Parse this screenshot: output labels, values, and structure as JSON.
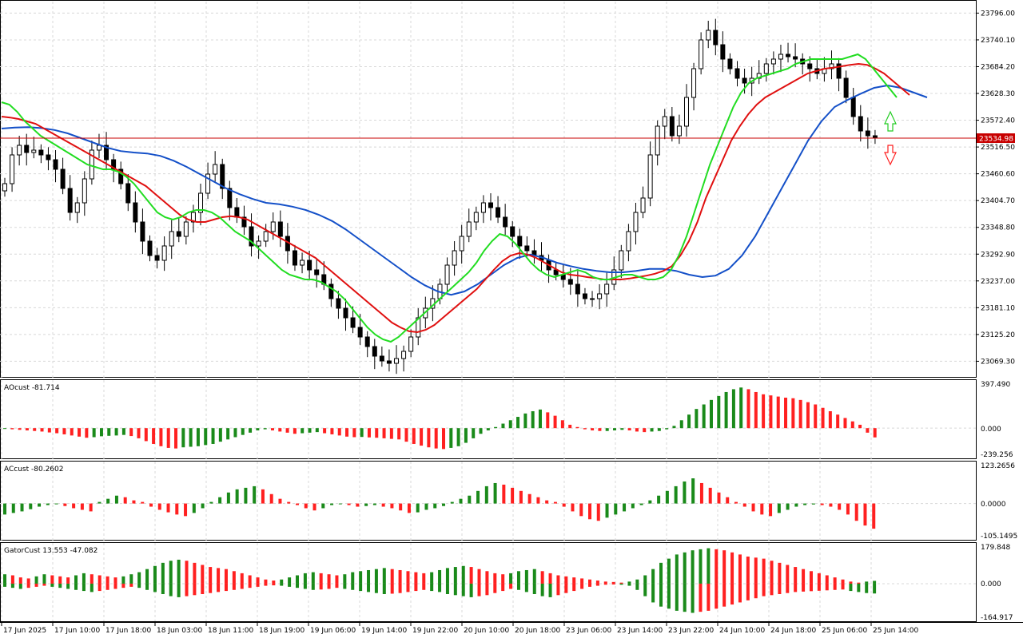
{
  "colors": {
    "background": "#ffffff",
    "grid": "#d8d8d8",
    "candle_up": "#ffffff",
    "candle_down": "#000000",
    "jaw": "#1450c8",
    "teeth": "#e01010",
    "lips": "#22dd22",
    "histogram_up": "#1a8a1a",
    "histogram_down": "#ff2020",
    "price_line": "#c80000",
    "current_price_bg": "#c80000",
    "current_price_text": "#ffffff",
    "fractal": "#a0a0a0",
    "arrow_up": "#22cc22",
    "arrow_down": "#ff2020"
  },
  "price_axis": {
    "labels": [
      "23796.00",
      "23740.10",
      "23684.20",
      "23628.30",
      "23572.40",
      "23516.50",
      "23460.60",
      "23404.70",
      "23348.80",
      "23292.90",
      "23237.00",
      "23181.10",
      "23125.20",
      "23069.30"
    ],
    "current_price": "23534.98"
  },
  "time_axis": {
    "labels": [
      "17 Jun 2025",
      "17 Jun 10:00",
      "17 Jun 18:00",
      "18 Jun 03:00",
      "18 Jun 11:00",
      "18 Jun 19:00",
      "19 Jun 06:00",
      "19 Jun 14:00",
      "19 Jun 22:00",
      "20 Jun 10:00",
      "20 Jun 18:00",
      "23 Jun 06:00",
      "23 Jun 14:00",
      "23 Jun 22:00",
      "24 Jun 10:00",
      "24 Jun 18:00",
      "25 Jun 06:00",
      "25 Jun 14:00"
    ]
  },
  "indicators": {
    "ao": {
      "label": "AOcust -81.714",
      "axis": [
        "397.490",
        "0.000",
        "-239.256"
      ]
    },
    "ac": {
      "label": "ACcust -80.2602",
      "axis": [
        "123.2656",
        "0.0000",
        "-105.1495"
      ]
    },
    "gator": {
      "label": "GatorCust 13.553 -47.082",
      "axis": [
        "179.848",
        "0.000",
        "-164.917"
      ]
    }
  },
  "chart_data": [
    {
      "type": "candlestick",
      "title": "",
      "ylim": [
        23040,
        23820
      ],
      "current_price": 23534.98,
      "close": [
        23440,
        23500,
        23520,
        23505,
        23510,
        23500,
        23490,
        23470,
        23430,
        23380,
        23400,
        23450,
        23510,
        23520,
        23490,
        23470,
        23440,
        23400,
        23360,
        23320,
        23290,
        23280,
        23310,
        23340,
        23330,
        23360,
        23380,
        23420,
        23460,
        23480,
        23430,
        23390,
        23370,
        23350,
        23310,
        23320,
        23340,
        23360,
        23330,
        23300,
        23270,
        23280,
        23260,
        23250,
        23230,
        23200,
        23180,
        23160,
        23140,
        23120,
        23100,
        23080,
        23070,
        23065,
        23075,
        23090,
        23120,
        23160,
        23180,
        23200,
        23230,
        23270,
        23300,
        23330,
        23360,
        23380,
        23400,
        23390,
        23370,
        23350,
        23330,
        23310,
        23300,
        23290,
        23280,
        23260,
        23250,
        23240,
        23230,
        23210,
        23200,
        23200,
        23210,
        23230,
        23260,
        23300,
        23340,
        23380,
        23410,
        23500,
        23560,
        23580,
        23540,
        23560,
        23620,
        23680,
        23740,
        23760,
        23730,
        23700,
        23680,
        23660,
        23650,
        23660,
        23670,
        23690,
        23700,
        23710,
        23705,
        23700,
        23690,
        23680,
        23670,
        23680,
        23690,
        23660,
        23620,
        23580,
        23550,
        23540,
        23535
      ],
      "lips": [
        23610,
        23605,
        23590,
        23570,
        23555,
        23540,
        23530,
        23520,
        23510,
        23500,
        23490,
        23480,
        23475,
        23470,
        23470,
        23465,
        23455,
        23440,
        23420,
        23400,
        23380,
        23370,
        23365,
        23370,
        23380,
        23385,
        23385,
        23380,
        23370,
        23355,
        23340,
        23330,
        23320,
        23305,
        23290,
        23275,
        23260,
        23250,
        23245,
        23240,
        23240,
        23235,
        23225,
        23215,
        23200,
        23180,
        23160,
        23140,
        23125,
        23115,
        23110,
        23120,
        23135,
        23150,
        23165,
        23180,
        23195,
        23210,
        23225,
        23240,
        23255,
        23275,
        23300,
        23320,
        23335,
        23330,
        23315,
        23295,
        23275,
        23260,
        23250,
        23245,
        23250,
        23255,
        23260,
        23255,
        23245,
        23240,
        23240,
        23245,
        23250,
        23250,
        23245,
        23240,
        23240,
        23245,
        23260,
        23290,
        23330,
        23380,
        23430,
        23480,
        23520,
        23560,
        23600,
        23630,
        23650,
        23660,
        23665,
        23670,
        23675,
        23680,
        23690,
        23695,
        23700,
        23700,
        23700,
        23700,
        23700,
        23705,
        23710,
        23700,
        23680,
        23660,
        23640,
        23620
      ],
      "teeth": [
        23580,
        23578,
        23575,
        23570,
        23565,
        23555,
        23545,
        23535,
        23525,
        23515,
        23505,
        23495,
        23485,
        23475,
        23465,
        23455,
        23445,
        23435,
        23420,
        23405,
        23390,
        23375,
        23365,
        23360,
        23360,
        23365,
        23370,
        23372,
        23370,
        23365,
        23355,
        23345,
        23335,
        23325,
        23315,
        23305,
        23295,
        23285,
        23270,
        23255,
        23240,
        23225,
        23210,
        23195,
        23180,
        23165,
        23150,
        23140,
        23132,
        23130,
        23135,
        23145,
        23160,
        23175,
        23190,
        23205,
        23220,
        23240,
        23260,
        23278,
        23290,
        23295,
        23292,
        23285,
        23275,
        23265,
        23255,
        23250,
        23248,
        23245,
        23243,
        23240,
        23240,
        23240,
        23242,
        23245,
        23248,
        23252,
        23258,
        23268,
        23290,
        23320,
        23360,
        23410,
        23450,
        23490,
        23530,
        23560,
        23585,
        23605,
        23620,
        23630,
        23640,
        23650,
        23660,
        23670,
        23675,
        23680,
        23682,
        23685,
        23688,
        23690,
        23688,
        23680,
        23670,
        23655,
        23640,
        23625
      ],
      "jaw": [
        23555,
        23557,
        23558,
        23556,
        23552,
        23545,
        23535,
        23525,
        23515,
        23508,
        23505,
        23503,
        23498,
        23488,
        23475,
        23460,
        23445,
        23430,
        23418,
        23408,
        23400,
        23397,
        23392,
        23385,
        23375,
        23362,
        23345,
        23325,
        23305,
        23285,
        23265,
        23245,
        23228,
        23215,
        23208,
        23215,
        23230,
        23250,
        23270,
        23285,
        23292,
        23285,
        23275,
        23268,
        23262,
        23258,
        23255,
        23255,
        23258,
        23262,
        23262,
        23258,
        23250,
        23245,
        23248,
        23262,
        23290,
        23330,
        23380,
        23430,
        23480,
        23530,
        23570,
        23600,
        23615,
        23628,
        23640,
        23645,
        23640,
        23630,
        23620
      ]
    },
    {
      "type": "bar",
      "title": "AOcust -81.714",
      "ylim": [
        -239.256,
        397.49
      ],
      "values": [
        -5,
        -10,
        -15,
        -20,
        -25,
        -30,
        -38,
        -45,
        -55,
        -65,
        -75,
        -85,
        -80,
        -72,
        -68,
        -65,
        -60,
        -70,
        -90,
        -115,
        -140,
        -160,
        -175,
        -180,
        -170,
        -165,
        -160,
        -150,
        -140,
        -120,
        -100,
        -80,
        -60,
        -40,
        -20,
        -10,
        -20,
        -30,
        -40,
        -50,
        -45,
        -40,
        -35,
        -45,
        -55,
        -65,
        -75,
        -80,
        -78,
        -82,
        -85,
        -90,
        -95,
        -100,
        -120,
        -140,
        -155,
        -170,
        -180,
        -185,
        -175,
        -160,
        -130,
        -90,
        -50,
        -20,
        10,
        40,
        70,
        100,
        130,
        150,
        165,
        140,
        110,
        70,
        30,
        10,
        -10,
        -20,
        -25,
        -25,
        -20,
        -15,
        -20,
        -30,
        -35,
        -30,
        -25,
        -10,
        20,
        70,
        120,
        170,
        210,
        250,
        285,
        320,
        345,
        360,
        345,
        320,
        300,
        290,
        280,
        270,
        265,
        250,
        230,
        210,
        180,
        150,
        120,
        90,
        60,
        30,
        -40,
        -82
      ]
    },
    {
      "type": "bar",
      "title": "ACcust -80.2602",
      "ylim": [
        -105.1495,
        123.2656
      ],
      "values": [
        -35,
        -30,
        -25,
        -18,
        -10,
        -5,
        -2,
        -8,
        -15,
        -20,
        -25,
        5,
        15,
        25,
        20,
        10,
        5,
        -10,
        -20,
        -28,
        -35,
        -40,
        -30,
        -15,
        5,
        20,
        35,
        45,
        50,
        55,
        45,
        30,
        15,
        5,
        -5,
        -15,
        -22,
        -15,
        -5,
        -2,
        -5,
        -10,
        -8,
        -5,
        -10,
        -15,
        -22,
        -30,
        -28,
        -20,
        -15,
        -8,
        5,
        15,
        25,
        40,
        55,
        65,
        60,
        50,
        40,
        30,
        20,
        10,
        5,
        -10,
        -25,
        -40,
        -50,
        -55,
        -45,
        -35,
        -25,
        -15,
        -5,
        10,
        25,
        40,
        55,
        70,
        80,
        65,
        50,
        35,
        20,
        5,
        -10,
        -25,
        -35,
        -40,
        -30,
        -20,
        -10,
        -5,
        -3,
        -5,
        -10,
        -20,
        -35,
        -55,
        -70,
        -80
      ],
      "series": []
    },
    {
      "type": "bar",
      "title": "GatorCust 13.553 -47.082",
      "ylim": [
        -164.917,
        179.848
      ],
      "series": [
        {
          "name": "",
          "values": [
            45,
            40,
            30,
            25,
            35,
            45,
            40,
            35,
            30,
            40,
            50,
            45,
            40,
            35,
            30,
            35,
            45,
            55,
            70,
            85,
            100,
            110,
            115,
            110,
            100,
            90,
            80,
            75,
            70,
            60,
            50,
            40,
            30,
            20,
            15,
            20,
            30,
            40,
            50,
            55,
            50,
            45,
            40,
            45,
            55,
            60,
            65,
            70,
            75,
            70,
            65,
            60,
            55,
            50,
            55,
            65,
            75,
            80,
            85,
            80,
            70,
            60,
            50,
            45,
            50,
            60,
            65,
            70,
            60,
            50,
            40,
            35,
            30,
            25,
            20,
            15,
            10,
            8,
            5,
            10,
            20,
            40,
            70,
            100,
            120,
            140,
            150,
            160,
            165,
            170,
            165,
            160,
            150,
            140,
            130,
            125,
            120,
            110,
            100,
            90,
            80,
            70,
            60,
            50,
            40,
            30,
            20,
            10,
            5,
            10,
            13.553
          ]
        },
        {
          "name": "",
          "values": [
            -15,
            -20,
            -25,
            -20,
            -15,
            -10,
            -15,
            -20,
            -25,
            -30,
            -35,
            -40,
            -35,
            -30,
            -25,
            -20,
            -15,
            -20,
            -30,
            -40,
            -50,
            -60,
            -65,
            -60,
            -55,
            -50,
            -45,
            -40,
            -35,
            -30,
            -25,
            -20,
            -15,
            -10,
            -8,
            -10,
            -15,
            -20,
            -25,
            -30,
            -28,
            -25,
            -20,
            -25,
            -30,
            -35,
            -40,
            -45,
            -50,
            -48,
            -45,
            -40,
            -35,
            -30,
            -35,
            -40,
            -50,
            -55,
            -60,
            -65,
            -60,
            -55,
            -45,
            -35,
            -25,
            -30,
            -40,
            -50,
            -60,
            -65,
            -55,
            -45,
            -35,
            -25,
            -15,
            -10,
            -5,
            -3,
            -5,
            -10,
            -30,
            -60,
            -90,
            -110,
            -120,
            -130,
            -135,
            -140,
            -135,
            -130,
            -120,
            -110,
            -100,
            -90,
            -80,
            -70,
            -60,
            -55,
            -50,
            -45,
            -40,
            -38,
            -36,
            -34,
            -32,
            -30,
            -28,
            -35,
            -40,
            -45,
            -47.082
          ]
        }
      ]
    }
  ]
}
